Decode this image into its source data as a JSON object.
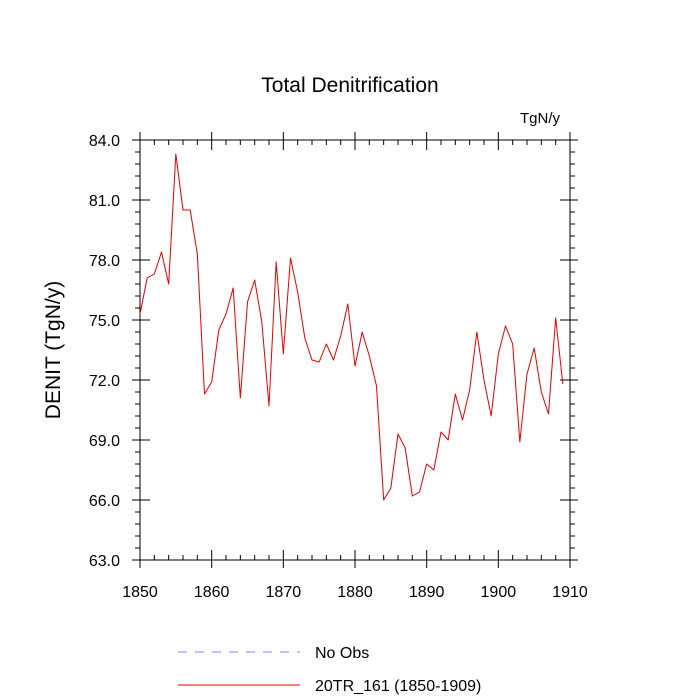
{
  "chart_data": {
    "type": "line",
    "title": "Total Denitrification",
    "units_label": "TgN/y",
    "xlabel": "",
    "ylabel": "DENIT  (TgN/y)",
    "xlim": [
      1850,
      1910
    ],
    "ylim": [
      63.0,
      84.0
    ],
    "x_ticks": [
      1850,
      1860,
      1870,
      1880,
      1890,
      1900,
      1910
    ],
    "x_tick_labels": [
      "1850",
      "1860",
      "1870",
      "1880",
      "1890",
      "1900",
      "1910"
    ],
    "y_ticks": [
      63.0,
      66.0,
      69.0,
      72.0,
      75.0,
      78.0,
      81.0,
      84.0
    ],
    "y_tick_labels": [
      "63.0",
      "66.0",
      "69.0",
      "72.0",
      "75.0",
      "78.0",
      "81.0",
      "84.0"
    ],
    "x_minor_step": 2,
    "y_minor_step": 0.6,
    "grid": false,
    "legend_position": "bottom",
    "series": [
      {
        "name": "20TR_161 (1850-1909)",
        "color": "#e00000",
        "style": "solid",
        "x": [
          1850,
          1851,
          1852,
          1853,
          1854,
          1855,
          1856,
          1857,
          1858,
          1859,
          1860,
          1861,
          1862,
          1863,
          1864,
          1865,
          1866,
          1867,
          1868,
          1869,
          1870,
          1871,
          1872,
          1873,
          1874,
          1875,
          1876,
          1877,
          1878,
          1879,
          1880,
          1881,
          1882,
          1883,
          1884,
          1885,
          1886,
          1887,
          1888,
          1889,
          1890,
          1891,
          1892,
          1893,
          1894,
          1895,
          1896,
          1897,
          1898,
          1899,
          1900,
          1901,
          1902,
          1903,
          1904,
          1905,
          1906,
          1907,
          1908,
          1909
        ],
        "values": [
          75.3,
          77.1,
          77.3,
          78.4,
          76.8,
          83.3,
          80.5,
          80.5,
          78.3,
          71.3,
          71.9,
          74.5,
          75.3,
          76.6,
          71.1,
          75.9,
          77.0,
          74.9,
          70.7,
          77.9,
          73.3,
          78.1,
          76.4,
          74.1,
          73.0,
          72.9,
          73.8,
          73.0,
          74.2,
          75.8,
          72.7,
          74.4,
          73.2,
          71.7,
          66.0,
          66.6,
          69.3,
          68.6,
          66.2,
          66.4,
          67.8,
          67.5,
          69.4,
          69.0,
          71.3,
          70.0,
          71.5,
          74.4,
          72.0,
          70.2,
          73.3,
          74.7,
          73.8,
          68.9,
          72.3,
          73.6,
          71.4,
          70.3,
          75.1,
          71.8
        ]
      },
      {
        "name": "No Obs",
        "color": "#8080ff",
        "style": "dashed",
        "x": [],
        "values": []
      }
    ]
  }
}
